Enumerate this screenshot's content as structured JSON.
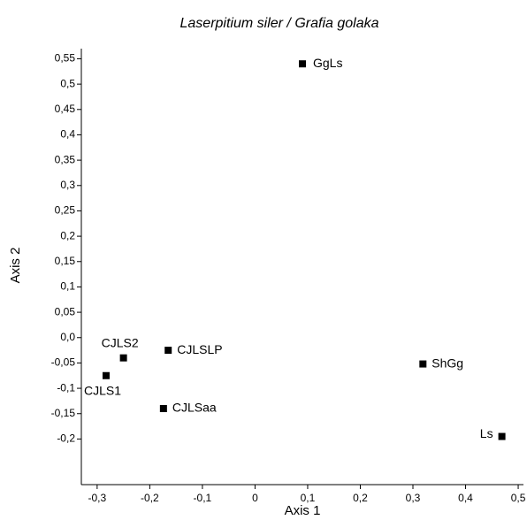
{
  "chart_data": {
    "type": "scatter",
    "title": "Laserpitium siler / Grafia golaka",
    "xlabel": "Axis 1",
    "ylabel": "Axis 2",
    "labels": [
      "GgLs",
      "CJLS2",
      "CJLSLP",
      "CJLS1",
      "CJLSaa",
      "ShGg",
      "Ls"
    ],
    "x": [
      0.09,
      -0.25,
      -0.165,
      -0.283,
      -0.174,
      0.319,
      0.469
    ],
    "y": [
      0.54,
      -0.04,
      -0.025,
      -0.075,
      -0.14,
      -0.052,
      -0.195
    ],
    "color": "#000000",
    "xlim": [
      -0.33,
      0.51
    ],
    "ylim": [
      -0.29,
      0.57
    ],
    "xticks": [
      {
        "value": -0.3,
        "label": "-0,3"
      },
      {
        "value": -0.2,
        "label": "-0,2"
      },
      {
        "value": -0.1,
        "label": "-0,1"
      },
      0,
      {
        "value": 0.1,
        "label": "0,1"
      },
      {
        "value": 0.2,
        "label": "0,2"
      },
      {
        "value": 0.3,
        "label": "0,3"
      },
      {
        "value": 0.4,
        "label": "0,4"
      },
      {
        "value": 0.5,
        "label": "0,5"
      }
    ],
    "yticks": [
      {
        "value": 0.55,
        "label": "0,55"
      },
      {
        "value": 0.5,
        "label": "0,5"
      },
      {
        "value": 0.45,
        "label": "0,45"
      },
      {
        "value": 0.4,
        "label": "0,4"
      },
      {
        "value": 0.35,
        "label": "0,35"
      },
      {
        "value": 0.3,
        "label": "0,3"
      },
      {
        "value": 0.25,
        "label": "0,25"
      },
      {
        "value": 0.2,
        "label": "0,2"
      },
      {
        "value": 0.15,
        "label": "0,15"
      },
      {
        "value": 0.1,
        "label": "0,1"
      },
      {
        "value": 0.05,
        "label": "0,05"
      },
      {
        "value": 0,
        "label": "0,0"
      },
      {
        "value": -0.05,
        "label": "-0,05"
      },
      {
        "value": -0.1,
        "label": "-0,1"
      },
      {
        "value": -0.15,
        "label": "-0,15"
      },
      {
        "value": -0.2,
        "label": "-0,2"
      }
    ]
  }
}
